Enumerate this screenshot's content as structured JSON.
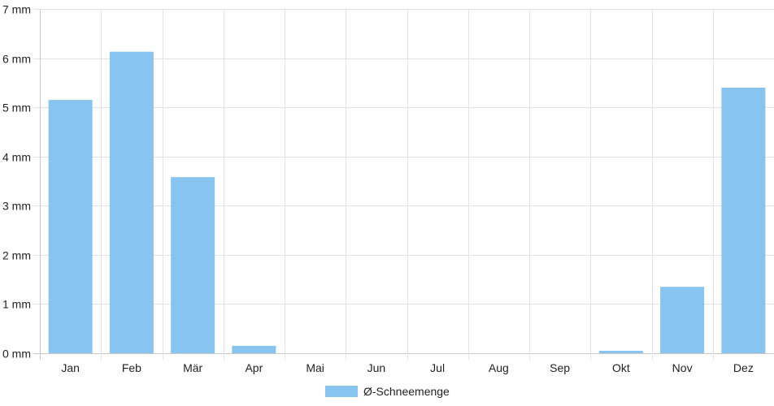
{
  "chart_data": {
    "type": "bar",
    "categories": [
      "Jan",
      "Feb",
      "Mär",
      "Apr",
      "Mai",
      "Jun",
      "Jul",
      "Aug",
      "Sep",
      "Okt",
      "Nov",
      "Dez"
    ],
    "series": [
      {
        "name": "Ø-Schneemenge",
        "values": [
          5.15,
          6.13,
          3.58,
          0.15,
          0,
          0,
          0,
          0,
          0,
          0.05,
          1.35,
          5.4
        ],
        "color": "#87c5f0"
      }
    ],
    "y_ticks": [
      "0 mm",
      "1 mm",
      "2 mm",
      "3 mm",
      "4 mm",
      "5 mm",
      "6 mm",
      "7 mm"
    ],
    "ylim": [
      0,
      7
    ],
    "grid": true,
    "legend_position": "bottom"
  }
}
